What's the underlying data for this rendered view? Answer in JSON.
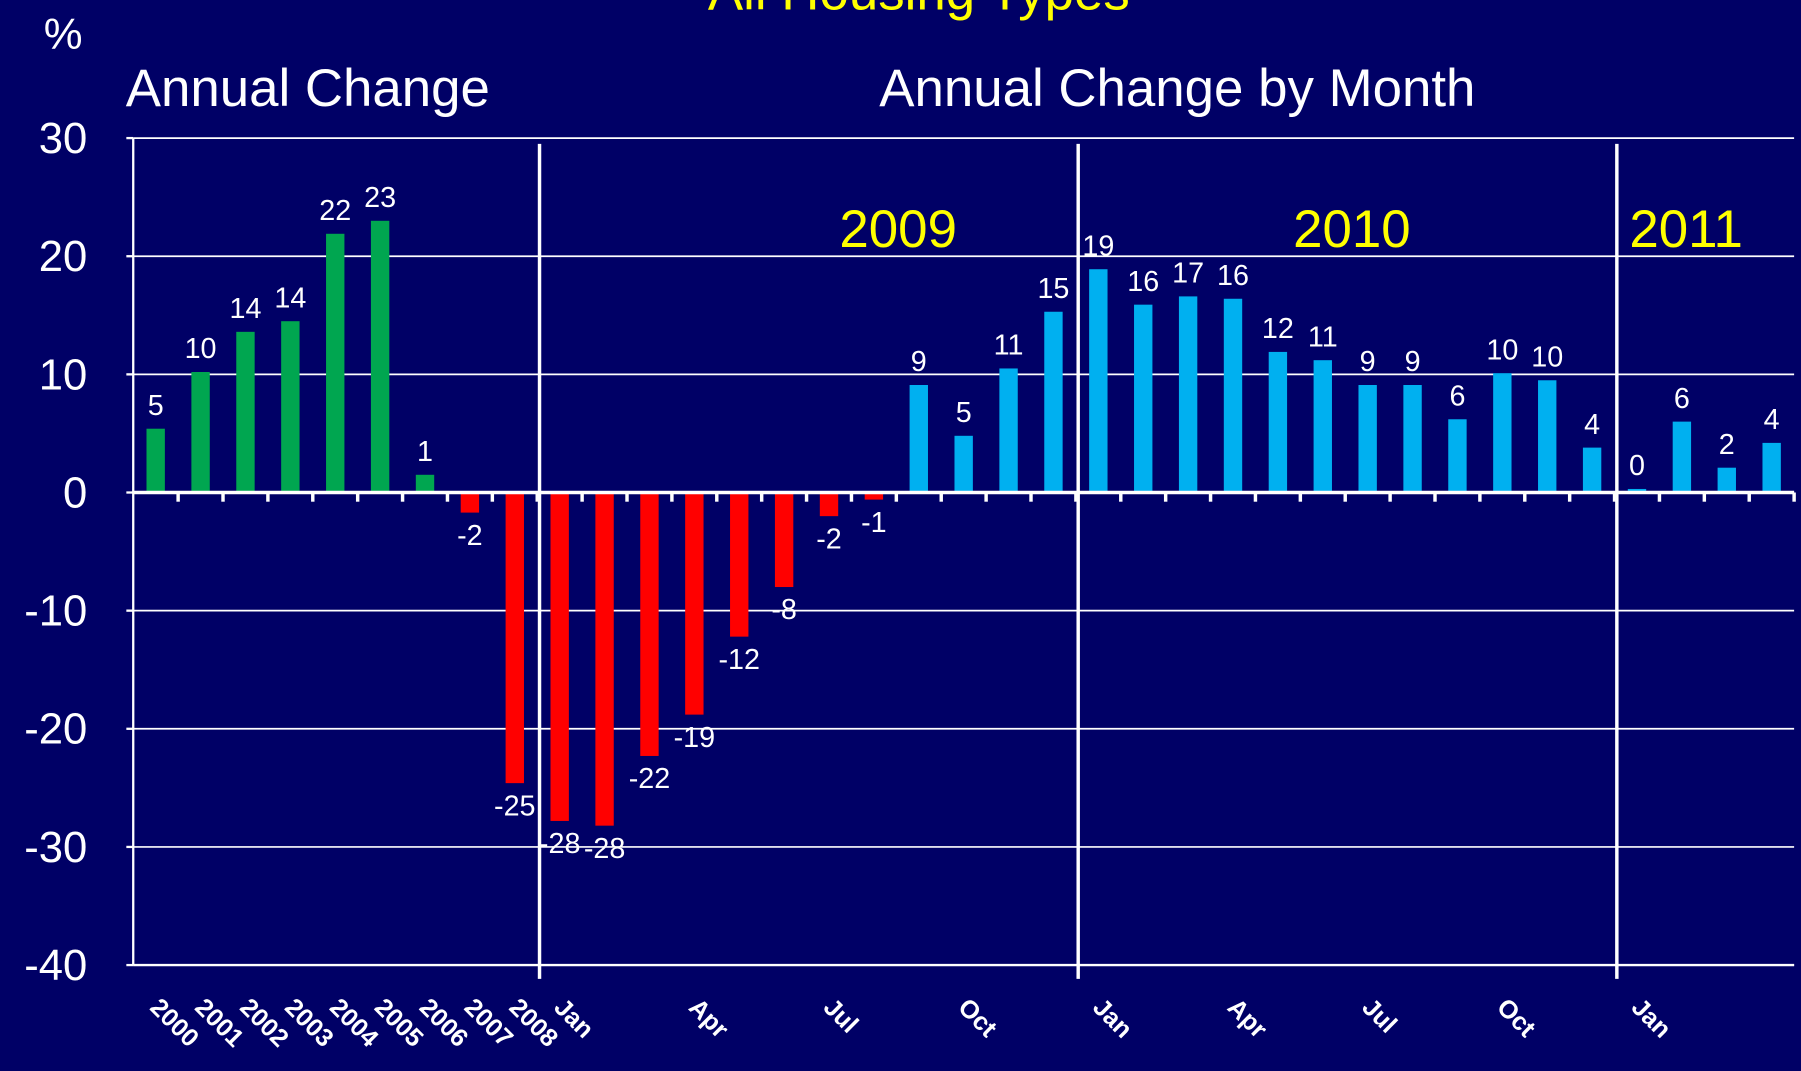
{
  "chart_data": {
    "type": "bar",
    "title": "All Housing Types",
    "y_label": "%",
    "panel_titles": [
      "Annual Change",
      "Annual Change by Month"
    ],
    "annotations": [
      "2009",
      "2010",
      "2011"
    ],
    "categories": [
      "2000",
      "2001",
      "2002",
      "2003",
      "2004",
      "2005",
      "2006",
      "2007",
      "2008",
      "Jan",
      null,
      null,
      "Apr",
      null,
      null,
      "Jul",
      null,
      null,
      "Oct",
      null,
      null,
      "Jan",
      null,
      null,
      "Apr",
      null,
      null,
      "Jul",
      null,
      null,
      "Oct",
      null,
      null,
      "Jan",
      null,
      null,
      null
    ],
    "values": [
      5.4,
      10.2,
      13.6,
      14.5,
      21.9,
      23.0,
      1.5,
      -1.7,
      -24.6,
      -27.8,
      -28.2,
      -22.3,
      -18.8,
      -12.2,
      -8.0,
      -2.0,
      -0.6,
      9.1,
      4.8,
      10.5,
      15.3,
      18.9,
      15.9,
      16.6,
      16.4,
      11.9,
      11.2,
      9.1,
      9.1,
      6.2,
      10.1,
      9.5,
      3.8,
      0.3,
      6.0,
      2.1,
      4.2
    ],
    "value_labels": [
      "5",
      "10",
      "14",
      "14",
      "22",
      "23",
      "1",
      "-2",
      "-25",
      "-28",
      "-28",
      "-22",
      "-19",
      "-12",
      "-8",
      "-2",
      "-1",
      "9",
      "5",
      "11",
      "15",
      "19",
      "16",
      "17",
      "16",
      "12",
      "11",
      "9",
      "9",
      "6",
      "10",
      "10",
      "4",
      "0",
      "6",
      "2",
      "4"
    ],
    "colors": [
      "#00a650",
      "#00a650",
      "#00a650",
      "#00a650",
      "#00a650",
      "#00a650",
      "#00a650",
      "#ff0000",
      "#ff0000",
      "#ff0000",
      "#ff0000",
      "#ff0000",
      "#ff0000",
      "#ff0000",
      "#ff0000",
      "#ff0000",
      "#ff0000",
      "#00b0f0",
      "#00b0f0",
      "#00b0f0",
      "#00b0f0",
      "#00b0f0",
      "#00b0f0",
      "#00b0f0",
      "#00b0f0",
      "#00b0f0",
      "#00b0f0",
      "#00b0f0",
      "#00b0f0",
      "#00b0f0",
      "#00b0f0",
      "#00b0f0",
      "#00b0f0",
      "#00b0f0",
      "#00b0f0",
      "#00b0f0",
      "#00b0f0"
    ],
    "ylim": [
      -40,
      30
    ],
    "yticks": [
      -40,
      -30,
      -20,
      -10,
      0,
      10,
      20,
      30
    ],
    "grid": true
  }
}
